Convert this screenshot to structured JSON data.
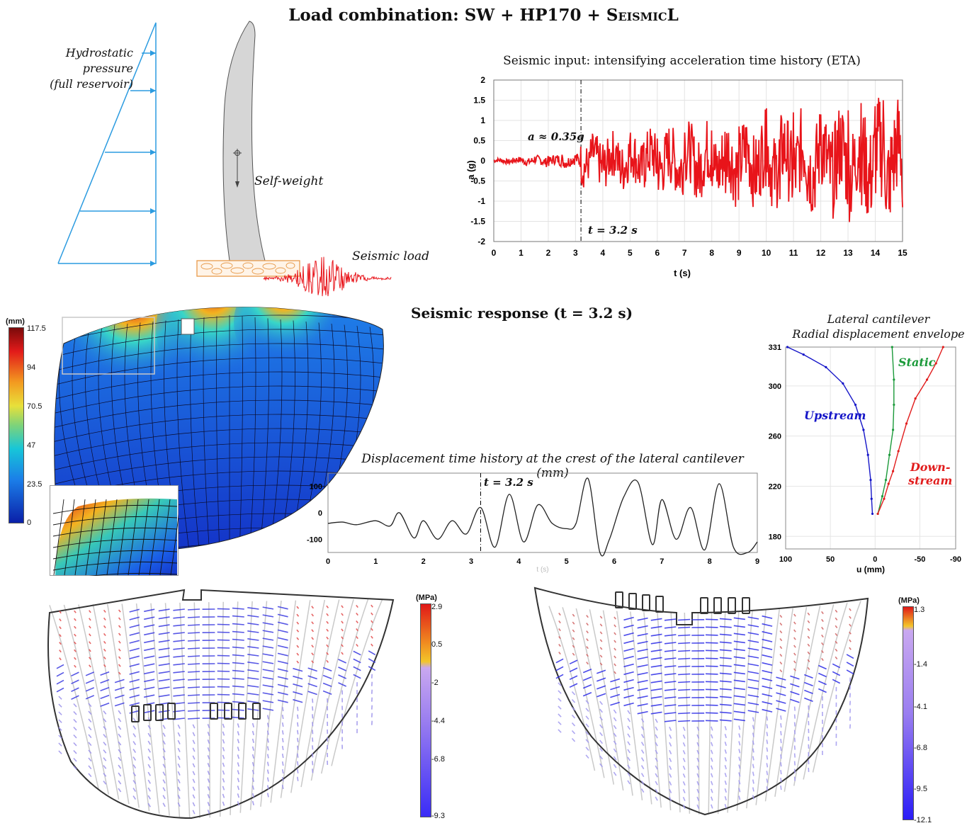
{
  "main_title": {
    "prefix": "Load combination: SW + HP170 + ",
    "seismic_word": "Seismic",
    "suffix": "L"
  },
  "loads": {
    "hydro_line1": "Hydrostatic pressure",
    "hydro_line2": "(full reservoir)",
    "self_weight": "Self-weight",
    "seismic_load": "Seismic load"
  },
  "accel_panel": {
    "title": "Seismic input: intensifying acceleration time history (ETA)",
    "annotation_a": "a ≈ 0.35g",
    "annotation_t": "t = 3.2 s"
  },
  "response_title": "Seismic response (t = 3.2 s)",
  "disp_colorbar": {
    "unit": "(mm)",
    "ticks": [
      "117.5",
      "94",
      "70.5",
      "47",
      "23.5",
      "0"
    ]
  },
  "disp_history": {
    "title": "Displacement time history at the crest of the lateral cantilever (mm)",
    "annotation_t": "t = 3.2 s",
    "xlabel": "t (s)"
  },
  "envelope_panel": {
    "title_line1": "Lateral cantilever",
    "title_line2": "Radial displacement envelope",
    "label_static": "Static",
    "label_upstream": "Upstream",
    "label_down1": "Down-",
    "label_down2": "stream"
  },
  "stress_left": {
    "unit": "(MPa)",
    "ticks": [
      "2.9",
      "0.5",
      "-2",
      "-4.4",
      "-6.8",
      "-9.3"
    ]
  },
  "stress_right": {
    "unit": "(MPa)",
    "ticks": [
      "1.3",
      "-1.4",
      "-4.1",
      "-6.8",
      "-9.5",
      "-12.1"
    ]
  },
  "colors": {
    "seismic_red": "#e8141a",
    "hydro_blue": "#2b9be0",
    "upstream": "#1515c8",
    "static": "#1b9a3a",
    "downstream": "#e11d1d"
  },
  "chart_data": [
    {
      "type": "line",
      "title": "Seismic input: intensifying acceleration time history (ETA)",
      "xlabel": "t (s)",
      "ylabel": "a (g)",
      "xlim": [
        0,
        15
      ],
      "ylim": [
        -2,
        2
      ],
      "xticks": [
        "0",
        "1",
        "2",
        "3",
        "4",
        "5",
        "6",
        "7",
        "8",
        "9",
        "10",
        "11",
        "12",
        "13",
        "14",
        "15"
      ],
      "yticks": [
        "2",
        "1.5",
        "1",
        "0.5",
        "0",
        "-0.5",
        "-1",
        "-1.5",
        "-2"
      ],
      "grid": true,
      "series": [
        {
          "x": [
            0,
            0.5,
            1,
            1.5,
            2,
            2.5,
            3,
            3.2,
            3.5,
            4,
            4.5,
            5,
            5.5,
            6,
            6.5,
            7,
            7.5,
            8,
            8.5,
            9,
            9.5,
            10,
            10.5,
            11,
            11.5,
            12,
            12.5,
            13,
            13.5,
            14,
            14.3,
            14.5,
            15
          ],
          "values": [
            0,
            0.02,
            0.05,
            0.1,
            0.12,
            0.15,
            0.1,
            0.35,
            0.2,
            0.4,
            0.35,
            0.5,
            0.45,
            0.55,
            -0.55,
            0.7,
            -0.7,
            0.75,
            -0.8,
            0.85,
            -0.9,
            1.3,
            -0.95,
            1.2,
            -1.0,
            1.15,
            -1.05,
            1.25,
            -1.1,
            1.35,
            1.5,
            -1.2,
            -1.15
          ]
        }
      ]
    },
    {
      "type": "line",
      "title": "Displacement time history at the crest of the lateral cantilever (mm)",
      "xlim": [
        0,
        9
      ],
      "ylim": [
        -150,
        150
      ],
      "xticks": [
        "0",
        "1",
        "2",
        "3",
        "4",
        "5",
        "6",
        "7",
        "8",
        "9"
      ],
      "yticks": [
        "100",
        "0",
        "-100"
      ],
      "series": [
        {
          "x": [
            0,
            0.3,
            0.6,
            1,
            1.3,
            1.5,
            1.8,
            2,
            2.3,
            2.6,
            2.9,
            3.2,
            3.5,
            3.8,
            4.1,
            4.4,
            4.7,
            5,
            5.2,
            5.45,
            5.7,
            5.9,
            6.2,
            6.5,
            6.8,
            7,
            7.3,
            7.6,
            7.9,
            8.2,
            8.5,
            8.8,
            9
          ],
          "values": [
            -40,
            -35,
            -45,
            -30,
            -50,
            0,
            -95,
            -30,
            -100,
            -30,
            -80,
            20,
            -130,
            70,
            -110,
            30,
            -40,
            -60,
            -40,
            130,
            -150,
            -100,
            60,
            115,
            -120,
            50,
            -100,
            20,
            -140,
            110,
            -130,
            -150,
            -110
          ]
        }
      ]
    },
    {
      "type": "line",
      "title": "Radial displacement envelope",
      "xlabel": "u (mm)",
      "xlim": [
        100,
        -90
      ],
      "ylim": [
        170,
        331
      ],
      "xticks": [
        "100",
        "50",
        "0",
        "-50",
        "-90"
      ],
      "yticks": [
        "331",
        "300",
        "260",
        "220",
        "180"
      ],
      "series": [
        {
          "name": "Upstream",
          "x": [
            3,
            4,
            5,
            8,
            13,
            22,
            36,
            55,
            80,
            98
          ],
          "values": [
            198,
            210,
            225,
            245,
            265,
            285,
            302,
            315,
            325,
            331
          ]
        },
        {
          "name": "Static",
          "x": [
            -3,
            -8,
            -12,
            -16,
            -20,
            -21,
            -21,
            -19
          ],
          "values": [
            198,
            212,
            225,
            245,
            265,
            285,
            305,
            331
          ]
        },
        {
          "name": "Downstream",
          "x": [
            -3,
            -10,
            -15,
            -20,
            -26,
            -35,
            -45,
            -58,
            -68,
            -76
          ],
          "values": [
            198,
            210,
            222,
            232,
            248,
            270,
            290,
            305,
            318,
            331
          ]
        }
      ]
    }
  ]
}
